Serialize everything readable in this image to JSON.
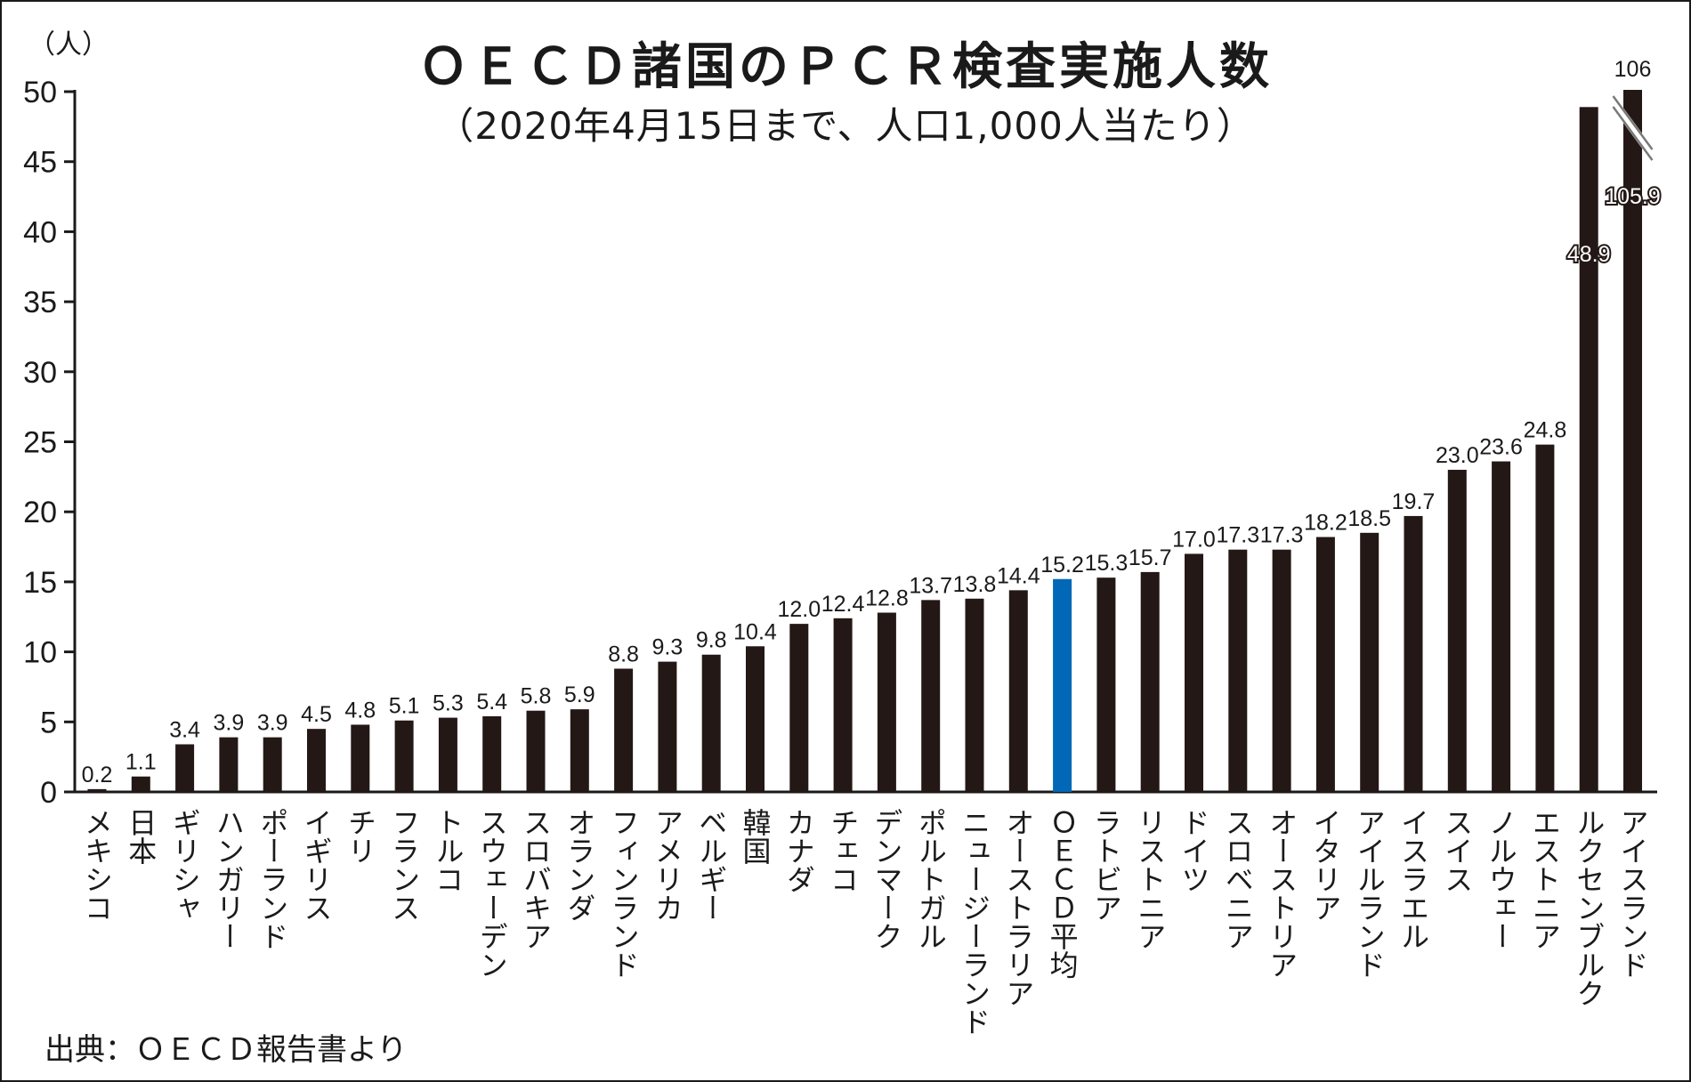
{
  "title": "ＯＥＣＤ諸国のＰＣＲ検査実施人数",
  "subtitle": "（2020年4月15日まで、人口1,000人当たり）",
  "source": "出典：ＯＥＣＤ報告書より",
  "colors": {
    "bar": "#231815",
    "highlight": "#0068b7",
    "text": "#1a1a1a",
    "background": "#ffffff"
  },
  "chart_data": {
    "type": "bar",
    "title": "ＯＥＣＤ諸国のＰＣＲ検査実施人数",
    "subtitle": "（2020年4月15日まで、人口1,000人当たり）",
    "ylabel": "（人）",
    "xlabel": "",
    "ylim": [
      0,
      50
    ],
    "yticks": [
      0,
      5,
      10,
      15,
      20,
      25,
      30,
      35,
      40,
      45,
      50
    ],
    "grid": false,
    "highlight_category": "ＯＥＣＤ平均",
    "categories": [
      "メキシコ",
      "日本",
      "ギリシャ",
      "ハンガリー",
      "ポーランド",
      "イギリス",
      "チリ",
      "フランス",
      "トルコ",
      "スウェーデン",
      "スロバキア",
      "オランダ",
      "フィンランド",
      "アメリカ",
      "ベルギー",
      "韓国",
      "カナダ",
      "チェコ",
      "デンマーク",
      "ポルトガル",
      "ニュージーランド",
      "オーストラリア",
      "ＯＥＣＤ平均",
      "ラトビア",
      "リストニア",
      "ドイツ",
      "スロベニア",
      "オーストリア",
      "イタリア",
      "アイルランド",
      "イスラエル",
      "スイス",
      "ノルウェー",
      "エストニア",
      "ルクセンブルク",
      "アイスランド"
    ],
    "values": [
      0.2,
      1.1,
      3.4,
      3.9,
      3.9,
      4.5,
      4.8,
      5.1,
      5.3,
      5.4,
      5.8,
      5.9,
      8.8,
      9.3,
      9.8,
      10.4,
      12.0,
      12.4,
      12.8,
      13.7,
      13.8,
      14.4,
      15.2,
      15.3,
      15.7,
      17.0,
      17.3,
      17.3,
      18.2,
      18.5,
      19.7,
      23.0,
      23.6,
      24.8,
      48.9,
      105.9
    ],
    "value_labels": [
      "0.2",
      "1.1",
      "3.4",
      "3.9",
      "3.9",
      "4.5",
      "4.8",
      "5.1",
      "5.3",
      "5.4",
      "5.8",
      "5.9",
      "8.8",
      "9.3",
      "9.8",
      "10.4",
      "12.0",
      "12.4",
      "12.8",
      "13.7",
      "13.8",
      "14.4",
      "15.2",
      "15.3",
      "15.7",
      "17.0",
      "17.3",
      "17.3",
      "18.2",
      "18.5",
      "19.7",
      "23.0",
      "23.6",
      "24.8",
      "48.9",
      "105.9"
    ],
    "axis_break": {
      "category": "アイスランド",
      "label": "106"
    }
  }
}
